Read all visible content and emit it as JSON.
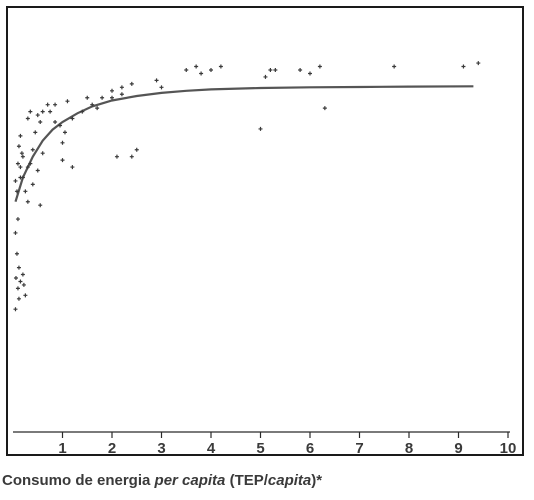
{
  "chart_data": {
    "type": "scatter",
    "title": "",
    "xlabel": {
      "part1": "Consumo de energia ",
      "part2": "per capita",
      "part3": " (TEP/",
      "part4": "capita",
      "part5": ")*"
    },
    "ylabel": "",
    "xlim": [
      0,
      10
    ],
    "x_ticks": [
      1,
      2,
      3,
      4,
      5,
      6,
      7,
      8,
      9,
      10
    ],
    "x_tick_labels": [
      "1",
      "2",
      "3",
      "4",
      "5",
      "6",
      "7",
      "8",
      "9",
      "10"
    ],
    "y_axis": "unlabeled",
    "ylim": [
      0.3,
      1.05
    ],
    "grid": false,
    "legend": "none",
    "points": [
      [
        0.05,
        0.73
      ],
      [
        0.08,
        0.7
      ],
      [
        0.1,
        0.62
      ],
      [
        0.05,
        0.58
      ],
      [
        0.08,
        0.52
      ],
      [
        0.12,
        0.48
      ],
      [
        0.06,
        0.45
      ],
      [
        0.15,
        0.44
      ],
      [
        0.1,
        0.42
      ],
      [
        0.2,
        0.46
      ],
      [
        0.22,
        0.43
      ],
      [
        0.25,
        0.4
      ],
      [
        0.12,
        0.39
      ],
      [
        0.05,
        0.36
      ],
      [
        0.1,
        0.78
      ],
      [
        0.15,
        0.74
      ],
      [
        0.18,
        0.81
      ],
      [
        0.2,
        0.8
      ],
      [
        0.15,
        0.86
      ],
      [
        0.12,
        0.83
      ],
      [
        0.25,
        0.7
      ],
      [
        0.3,
        0.77
      ],
      [
        0.35,
        0.78
      ],
      [
        0.4,
        0.82
      ],
      [
        0.45,
        0.87
      ],
      [
        0.55,
        0.9
      ],
      [
        0.6,
        0.93
      ],
      [
        0.75,
        0.93
      ],
      [
        0.85,
        0.95
      ],
      [
        0.7,
        0.95
      ],
      [
        0.3,
        0.67
      ],
      [
        0.4,
        0.72
      ],
      [
        0.5,
        0.76
      ],
      [
        0.55,
        0.66
      ],
      [
        0.6,
        0.81
      ],
      [
        0.85,
        0.9
      ],
      [
        0.95,
        0.89
      ],
      [
        1.0,
        0.84
      ],
      [
        1.05,
        0.87
      ],
      [
        1.0,
        0.79
      ],
      [
        0.3,
        0.91
      ],
      [
        0.35,
        0.93
      ],
      [
        0.2,
        0.74
      ],
      [
        0.5,
        0.92
      ],
      [
        0.15,
        0.77
      ],
      [
        1.1,
        0.96
      ],
      [
        1.2,
        0.91
      ],
      [
        1.4,
        0.93
      ],
      [
        1.5,
        0.97
      ],
      [
        1.6,
        0.95
      ],
      [
        1.7,
        0.94
      ],
      [
        1.8,
        0.97
      ],
      [
        2.0,
        0.99
      ],
      [
        2.0,
        0.97
      ],
      [
        2.2,
        1.0
      ],
      [
        2.4,
        1.01
      ],
      [
        2.2,
        0.98
      ],
      [
        1.2,
        0.77
      ],
      [
        2.1,
        0.8
      ],
      [
        2.4,
        0.8
      ],
      [
        2.5,
        0.82
      ],
      [
        2.9,
        1.02
      ],
      [
        3.0,
        1.0
      ],
      [
        3.5,
        1.05
      ],
      [
        3.7,
        1.06
      ],
      [
        3.8,
        1.04
      ],
      [
        4.0,
        1.05
      ],
      [
        4.2,
        1.06
      ],
      [
        5.0,
        0.88
      ],
      [
        5.1,
        1.03
      ],
      [
        5.2,
        1.05
      ],
      [
        5.3,
        1.05
      ],
      [
        5.8,
        1.05
      ],
      [
        6.0,
        1.04
      ],
      [
        6.2,
        1.06
      ],
      [
        6.3,
        0.94
      ],
      [
        7.7,
        1.06
      ],
      [
        9.1,
        1.06
      ],
      [
        9.4,
        1.07
      ]
    ],
    "fit_curve": [
      [
        0.05,
        0.67
      ],
      [
        0.2,
        0.74
      ],
      [
        0.4,
        0.8
      ],
      [
        0.6,
        0.846
      ],
      [
        0.8,
        0.878
      ],
      [
        1.0,
        0.9
      ],
      [
        1.3,
        0.925
      ],
      [
        1.6,
        0.945
      ],
      [
        2.0,
        0.962
      ],
      [
        2.5,
        0.975
      ],
      [
        3.0,
        0.984
      ],
      [
        3.5,
        0.99
      ],
      [
        4.0,
        0.994
      ],
      [
        5.0,
        0.998
      ],
      [
        6.0,
        1.0
      ],
      [
        7.0,
        1.001
      ],
      [
        8.0,
        1.002
      ],
      [
        9.3,
        1.003
      ]
    ],
    "colors": {
      "curve": "#555555",
      "points": "#3a3a3a",
      "axis": "#2a2a2a",
      "frame": "#1a1a1a",
      "text": "#3a3a3a"
    }
  }
}
